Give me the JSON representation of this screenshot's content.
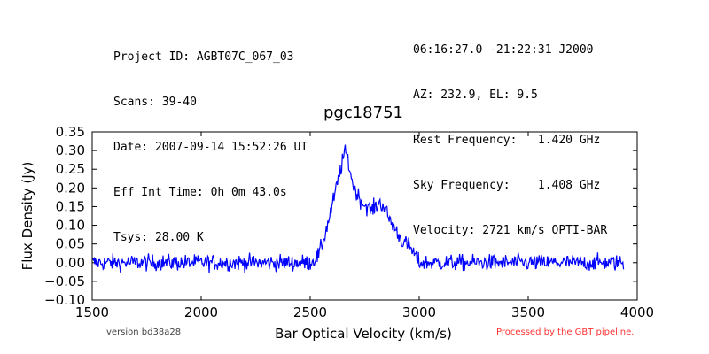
{
  "header_left": [
    "Project ID: AGBT07C_067_03",
    "Scans: 39-40",
    "Date: 2007-09-14 15:52:26 UT",
    "Eff Int Time: 0h 0m 43.0s",
    "Tsys: 28.00 K"
  ],
  "header_right": [
    "06:16:27.0 -21:22:31 J2000",
    "AZ: 232.9, EL: 9.5",
    "Rest Frequency:   1.420 GHz",
    "Sky Frequency:    1.408 GHz",
    "Velocity: 2721 km/s OPTI-BAR"
  ],
  "footer": {
    "version": "version bd38a28",
    "processed": "Processed by the GBT pipeline."
  },
  "colors": {
    "series": "#0000ff",
    "processed_text": "#ff3333"
  },
  "chart_data": {
    "type": "line",
    "title": "pgc18751",
    "xlabel": "Bar Optical Velocity (km/s)",
    "ylabel": "Flux Density (Jy)",
    "xlim": [
      1500,
      4000
    ],
    "ylim": [
      -0.1,
      0.35
    ],
    "xticks": [
      1500,
      2000,
      2500,
      3000,
      3500,
      4000
    ],
    "yticks": [
      -0.1,
      -0.05,
      0.0,
      0.05,
      0.1,
      0.15,
      0.2,
      0.25,
      0.3,
      0.35
    ],
    "ytick_labels": [
      "−0.10",
      "−0.05",
      "0.00",
      "0.05",
      "0.10",
      "0.15",
      "0.20",
      "0.25",
      "0.30",
      "0.35"
    ],
    "grid": false,
    "series": [
      {
        "x": [
          1500,
          2500,
          2540,
          2570,
          2600,
          2620,
          2640,
          2655,
          2665,
          2675,
          2685,
          2700,
          2720,
          2740,
          2760,
          2780,
          2800,
          2820,
          2840,
          2860,
          2880,
          2900,
          2920,
          2940,
          2960,
          2980,
          3000,
          3050,
          3940
        ],
        "values": [
          0.0,
          0.0,
          0.02,
          0.08,
          0.15,
          0.2,
          0.25,
          0.29,
          0.295,
          0.27,
          0.24,
          0.2,
          0.18,
          0.16,
          0.15,
          0.14,
          0.15,
          0.16,
          0.15,
          0.12,
          0.1,
          0.08,
          0.06,
          0.05,
          0.04,
          0.02,
          0.0,
          0.0,
          0.0
        ],
        "noise_rms": 0.02,
        "x_end": 3940,
        "x_start": 1500
      }
    ]
  }
}
